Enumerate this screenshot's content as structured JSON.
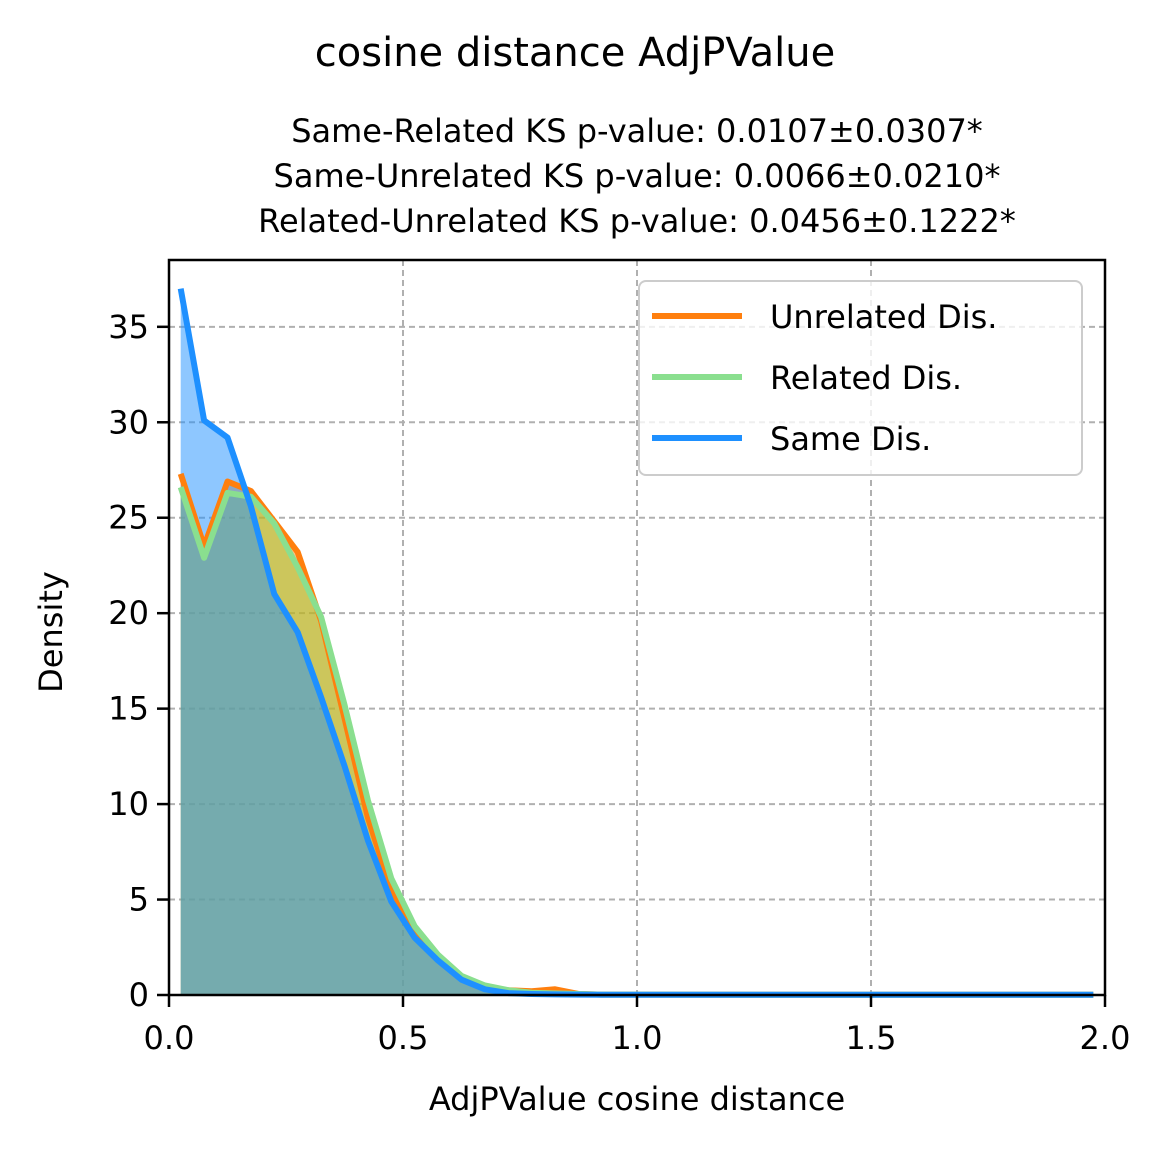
{
  "chart_data": {
    "type": "area",
    "title": "cosine distance AdjPValue",
    "subtitle_lines": [
      "Same-Related KS p-value: 0.0107±0.0307*",
      "Same-Unrelated KS p-value: 0.0066±0.0210*",
      "Related-Unrelated KS p-value: 0.0456±0.1222*"
    ],
    "xlabel": "AdjPValue cosine distance",
    "ylabel": "Density",
    "xlim": [
      0,
      2
    ],
    "ylim": [
      0,
      38.5
    ],
    "xticks": [
      0,
      0.5,
      1,
      1.5,
      2
    ],
    "xtick_labels": [
      "0.0",
      "0.5",
      "1.0",
      "1.5",
      "2.0"
    ],
    "yticks": [
      0,
      5,
      10,
      15,
      20,
      25,
      30,
      35
    ],
    "ytick_labels": [
      "0",
      "5",
      "10",
      "15",
      "20",
      "25",
      "30",
      "35"
    ],
    "grid": true,
    "legend_position": "top-right",
    "series": [
      {
        "name": "Unrelated Dis.",
        "color": "#ff7f0e",
        "fill": "#ff7f0e",
        "x": [
          0.025,
          0.075,
          0.125,
          0.175,
          0.225,
          0.275,
          0.325,
          0.375,
          0.425,
          0.475,
          0.525,
          0.575,
          0.625,
          0.675,
          0.725,
          0.775,
          0.825,
          0.875,
          0.925,
          0.975,
          1.5,
          1.975
        ],
        "y": [
          27.3,
          23.5,
          26.9,
          26.4,
          24.8,
          23.2,
          19.6,
          14.5,
          9.3,
          5.5,
          3.3,
          1.9,
          0.9,
          0.4,
          0.25,
          0.2,
          0.3,
          0.05,
          0.02,
          0.02,
          0.01,
          0.01
        ]
      },
      {
        "name": "Related Dis.",
        "color": "#8adf8f",
        "fill": "#9acd32",
        "x": [
          0.025,
          0.075,
          0.125,
          0.175,
          0.225,
          0.275,
          0.325,
          0.375,
          0.425,
          0.475,
          0.525,
          0.575,
          0.625,
          0.675,
          0.725,
          0.775,
          0.825,
          0.875,
          0.925,
          0.975,
          1.5,
          1.975
        ],
        "y": [
          26.6,
          22.9,
          26.3,
          26.1,
          24.7,
          22.4,
          19.8,
          15.2,
          10.2,
          6.1,
          3.6,
          2.1,
          1.0,
          0.5,
          0.25,
          0.12,
          0.08,
          0.05,
          0.02,
          0.02,
          0.01,
          0.01
        ]
      },
      {
        "name": "Same Dis.",
        "color": "#1e90ff",
        "fill": "#1e90ff",
        "x": [
          0.025,
          0.075,
          0.125,
          0.175,
          0.225,
          0.275,
          0.325,
          0.375,
          0.425,
          0.475,
          0.525,
          0.575,
          0.625,
          0.675,
          0.725,
          0.775,
          0.825,
          0.875,
          0.925,
          0.975,
          1.5,
          1.975
        ],
        "y": [
          37.0,
          30.1,
          29.2,
          25.6,
          21.0,
          19.0,
          15.6,
          12.0,
          8.1,
          4.9,
          3.0,
          1.8,
          0.8,
          0.3,
          0.1,
          0.05,
          0.03,
          0.02,
          0.01,
          0.01,
          0.01,
          0.01
        ]
      }
    ]
  }
}
